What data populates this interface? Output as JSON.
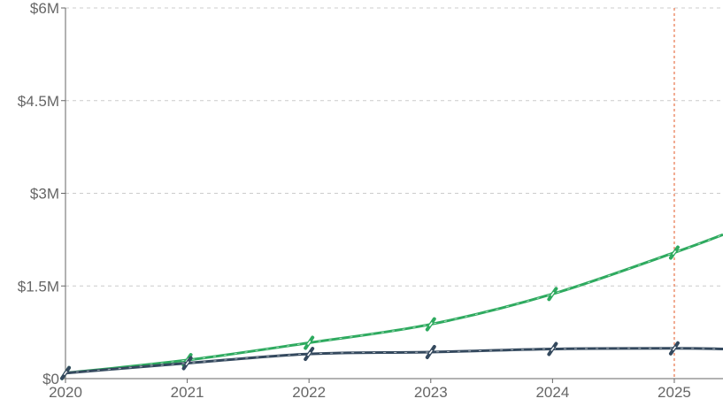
{
  "chart_data": {
    "type": "line",
    "title": "",
    "xlabel": "",
    "ylabel": "",
    "x_ticks": [
      "2020",
      "2021",
      "2022",
      "2023",
      "2024",
      "2025"
    ],
    "y_ticks": [
      "$0",
      "$1.5M",
      "$3M",
      "$4.5M",
      "$6M"
    ],
    "y_tick_values": [
      0,
      1500000,
      3000000,
      4500000,
      6000000
    ],
    "xlim": [
      2020,
      2025.4
    ],
    "ylim": [
      0,
      6000000
    ],
    "grid": true,
    "vertical_marker_x": 2025,
    "series": [
      {
        "color": "#2eaa5f",
        "x": [
          2020,
          2021,
          2022,
          2023,
          2024,
          2025,
          2025.4
        ],
        "y": [
          90000,
          300000,
          580000,
          880000,
          1370000,
          2040000,
          2330000
        ]
      },
      {
        "color": "#34495e",
        "x": [
          2020,
          2021,
          2022,
          2023,
          2024,
          2025,
          2025.4
        ],
        "y": [
          90000,
          250000,
          400000,
          430000,
          480000,
          490000,
          480000
        ]
      }
    ]
  }
}
